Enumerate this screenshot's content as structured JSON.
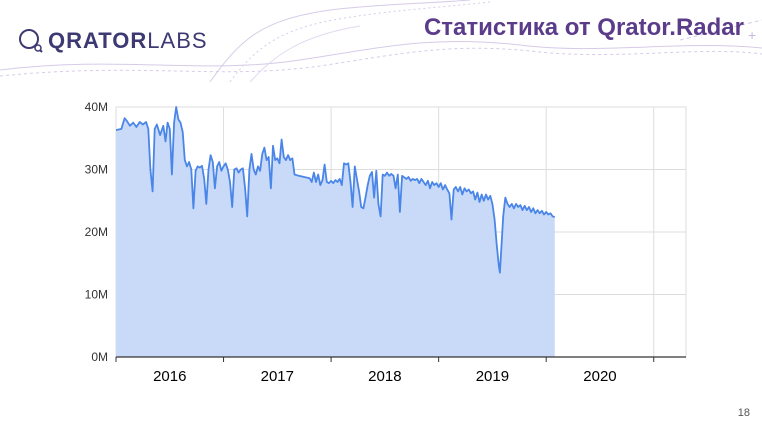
{
  "header": {
    "logo_bold": "QRATOR",
    "logo_light": "LABS",
    "title": "Статистика от Qrator.Radar"
  },
  "page_number": "18",
  "colors": {
    "line": "#4a86e8",
    "fill": "#c9daf8",
    "title": "#5b3c8a",
    "logo": "#3d3a73",
    "grid": "#dddddd",
    "decor": "#c9b9e0"
  },
  "chart_data": {
    "type": "area",
    "title": "",
    "xlabel": "",
    "ylabel": "",
    "ylim": [
      0,
      40
    ],
    "xlim": [
      2015.5,
      2020.8
    ],
    "y_ticks": [
      0,
      10,
      20,
      30,
      40
    ],
    "y_tick_labels": [
      "0M",
      "10M",
      "20M",
      "30M",
      "40M"
    ],
    "x_tick_labels": [
      {
        "label": "2016",
        "x": 2016.0
      },
      {
        "label": "2017",
        "x": 2017.0
      },
      {
        "label": "2018",
        "x": 2018.0
      },
      {
        "label": "2019",
        "x": 2019.0
      },
      {
        "label": "2020",
        "x": 2020.0
      }
    ],
    "x_year_boundaries": [
      2015.5,
      2016.5,
      2017.5,
      2018.5,
      2019.5,
      2020.5
    ],
    "grid": true,
    "unit": "M",
    "series": [
      {
        "values": [
          [
            2015.5,
            36.3
          ],
          [
            2015.55,
            36.5
          ],
          [
            2015.58,
            38.2
          ],
          [
            2015.6,
            37.8
          ],
          [
            2015.63,
            37.0
          ],
          [
            2015.66,
            37.5
          ],
          [
            2015.69,
            36.8
          ],
          [
            2015.72,
            37.6
          ],
          [
            2015.75,
            37.2
          ],
          [
            2015.78,
            37.6
          ],
          [
            2015.8,
            36.5
          ],
          [
            2015.82,
            30.0
          ],
          [
            2015.84,
            26.5
          ],
          [
            2015.86,
            36.5
          ],
          [
            2015.88,
            37.2
          ],
          [
            2015.91,
            35.5
          ],
          [
            2015.94,
            37.0
          ],
          [
            2015.96,
            34.5
          ],
          [
            2015.98,
            37.5
          ],
          [
            2016.0,
            36.5
          ],
          [
            2016.02,
            29.2
          ],
          [
            2016.04,
            37.5
          ],
          [
            2016.06,
            40.0
          ],
          [
            2016.08,
            38.0
          ],
          [
            2016.1,
            37.5
          ],
          [
            2016.12,
            36.0
          ],
          [
            2016.14,
            31.5
          ],
          [
            2016.16,
            30.5
          ],
          [
            2016.18,
            31.2
          ],
          [
            2016.2,
            30.0
          ],
          [
            2016.22,
            23.8
          ],
          [
            2016.24,
            29.8
          ],
          [
            2016.26,
            30.5
          ],
          [
            2016.28,
            30.3
          ],
          [
            2016.3,
            30.6
          ],
          [
            2016.32,
            28.5
          ],
          [
            2016.34,
            24.5
          ],
          [
            2016.36,
            30.0
          ],
          [
            2016.38,
            32.3
          ],
          [
            2016.4,
            31.2
          ],
          [
            2016.42,
            27.0
          ],
          [
            2016.44,
            30.5
          ],
          [
            2016.46,
            31.2
          ],
          [
            2016.48,
            29.8
          ],
          [
            2016.5,
            30.5
          ],
          [
            2016.52,
            31.0
          ],
          [
            2016.54,
            30.0
          ],
          [
            2016.56,
            28.0
          ],
          [
            2016.58,
            24.0
          ],
          [
            2016.6,
            30.0
          ],
          [
            2016.62,
            30.2
          ],
          [
            2016.64,
            29.5
          ],
          [
            2016.66,
            30.0
          ],
          [
            2016.68,
            30.2
          ],
          [
            2016.7,
            27.0
          ],
          [
            2016.72,
            22.5
          ],
          [
            2016.74,
            30.0
          ],
          [
            2016.76,
            32.5
          ],
          [
            2016.78,
            30.0
          ],
          [
            2016.8,
            29.2
          ],
          [
            2016.82,
            30.5
          ],
          [
            2016.84,
            29.8
          ],
          [
            2016.86,
            32.5
          ],
          [
            2016.88,
            33.5
          ],
          [
            2016.9,
            31.5
          ],
          [
            2016.92,
            32.0
          ],
          [
            2016.94,
            27.0
          ],
          [
            2016.96,
            33.8
          ],
          [
            2016.98,
            31.5
          ],
          [
            2017.0,
            31.8
          ],
          [
            2017.02,
            31.0
          ],
          [
            2017.04,
            34.8
          ],
          [
            2017.06,
            32.0
          ],
          [
            2017.08,
            31.5
          ],
          [
            2017.1,
            32.3
          ],
          [
            2017.12,
            31.5
          ],
          [
            2017.14,
            31.8
          ],
          [
            2017.16,
            29.2
          ],
          [
            2017.2,
            29.0
          ],
          [
            2017.25,
            28.8
          ],
          [
            2017.3,
            28.6
          ],
          [
            2017.32,
            28.0
          ],
          [
            2017.34,
            29.5
          ],
          [
            2017.36,
            28.0
          ],
          [
            2017.38,
            29.2
          ],
          [
            2017.4,
            27.5
          ],
          [
            2017.42,
            28.3
          ],
          [
            2017.44,
            30.8
          ],
          [
            2017.46,
            28.0
          ],
          [
            2017.48,
            27.8
          ],
          [
            2017.5,
            28.2
          ],
          [
            2017.52,
            27.8
          ],
          [
            2017.54,
            28.3
          ],
          [
            2017.56,
            28.0
          ],
          [
            2017.58,
            28.5
          ],
          [
            2017.6,
            27.5
          ],
          [
            2017.62,
            31.0
          ],
          [
            2017.64,
            30.8
          ],
          [
            2017.66,
            31.0
          ],
          [
            2017.68,
            28.0
          ],
          [
            2017.7,
            24.0
          ],
          [
            2017.72,
            30.5
          ],
          [
            2017.74,
            28.5
          ],
          [
            2017.76,
            26.5
          ],
          [
            2017.78,
            24.0
          ],
          [
            2017.8,
            23.8
          ],
          [
            2017.82,
            25.5
          ],
          [
            2017.84,
            27.5
          ],
          [
            2017.86,
            29.0
          ],
          [
            2017.88,
            29.6
          ],
          [
            2017.9,
            25.5
          ],
          [
            2017.92,
            29.8
          ],
          [
            2017.94,
            24.5
          ],
          [
            2017.96,
            22.5
          ],
          [
            2017.98,
            29.2
          ],
          [
            2018.0,
            29.0
          ],
          [
            2018.02,
            29.5
          ],
          [
            2018.04,
            29.0
          ],
          [
            2018.06,
            29.3
          ],
          [
            2018.08,
            29.0
          ],
          [
            2018.1,
            27.0
          ],
          [
            2018.12,
            29.2
          ],
          [
            2018.14,
            23.2
          ],
          [
            2018.16,
            29.0
          ],
          [
            2018.2,
            28.5
          ],
          [
            2018.22,
            28.8
          ],
          [
            2018.24,
            28.2
          ],
          [
            2018.26,
            28.5
          ],
          [
            2018.28,
            28.3
          ],
          [
            2018.3,
            28.5
          ],
          [
            2018.32,
            27.8
          ],
          [
            2018.34,
            28.5
          ],
          [
            2018.36,
            28.0
          ],
          [
            2018.38,
            27.5
          ],
          [
            2018.4,
            28.2
          ],
          [
            2018.42,
            27.0
          ],
          [
            2018.44,
            28.0
          ],
          [
            2018.46,
            27.5
          ],
          [
            2018.48,
            27.8
          ],
          [
            2018.5,
            27.2
          ],
          [
            2018.52,
            27.8
          ],
          [
            2018.54,
            26.8
          ],
          [
            2018.56,
            27.5
          ],
          [
            2018.58,
            26.8
          ],
          [
            2018.6,
            26.2
          ],
          [
            2018.62,
            22.0
          ],
          [
            2018.64,
            26.8
          ],
          [
            2018.66,
            27.2
          ],
          [
            2018.68,
            26.5
          ],
          [
            2018.7,
            27.2
          ],
          [
            2018.72,
            26.0
          ],
          [
            2018.74,
            27.0
          ],
          [
            2018.76,
            26.5
          ],
          [
            2018.78,
            26.8
          ],
          [
            2018.8,
            26.2
          ],
          [
            2018.82,
            26.5
          ],
          [
            2018.84,
            25.2
          ],
          [
            2018.86,
            26.3
          ],
          [
            2018.88,
            24.8
          ],
          [
            2018.9,
            26.0
          ],
          [
            2018.92,
            25.0
          ],
          [
            2018.94,
            26.0
          ],
          [
            2018.96,
            25.2
          ],
          [
            2018.98,
            25.8
          ],
          [
            2019.0,
            24.5
          ],
          [
            2019.02,
            22.0
          ],
          [
            2019.04,
            18.0
          ],
          [
            2019.06,
            14.5
          ],
          [
            2019.07,
            13.5
          ],
          [
            2019.08,
            16.5
          ],
          [
            2019.1,
            22.5
          ],
          [
            2019.12,
            25.5
          ],
          [
            2019.14,
            24.5
          ],
          [
            2019.16,
            24.0
          ],
          [
            2019.18,
            24.5
          ],
          [
            2019.2,
            23.8
          ],
          [
            2019.22,
            24.5
          ],
          [
            2019.24,
            24.0
          ],
          [
            2019.26,
            24.3
          ],
          [
            2019.28,
            23.5
          ],
          [
            2019.3,
            24.2
          ],
          [
            2019.32,
            23.5
          ],
          [
            2019.34,
            24.0
          ],
          [
            2019.36,
            23.2
          ],
          [
            2019.38,
            23.8
          ],
          [
            2019.4,
            23.0
          ],
          [
            2019.42,
            23.5
          ],
          [
            2019.44,
            23.0
          ],
          [
            2019.46,
            23.4
          ],
          [
            2019.48,
            22.8
          ],
          [
            2019.5,
            23.2
          ],
          [
            2019.52,
            22.8
          ],
          [
            2019.54,
            23.0
          ],
          [
            2019.56,
            22.5
          ],
          [
            2019.58,
            22.4
          ]
        ]
      }
    ]
  }
}
